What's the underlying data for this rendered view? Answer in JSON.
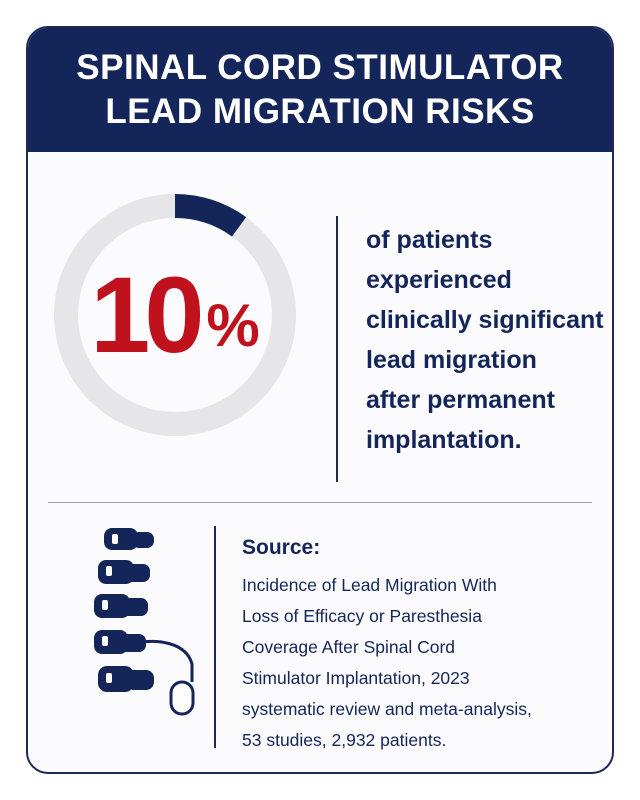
{
  "header": {
    "title_line1": "SPINAL CORD STIMULATOR",
    "title_line2": "LEAD MIGRATION RISKS"
  },
  "stat": {
    "value": "10",
    "unit": "%",
    "fraction": 0.1,
    "description_lines": [
      "of patients",
      "experienced",
      "clinically significant",
      "lead migration",
      "after permanent",
      "implantation."
    ]
  },
  "source": {
    "label": "Source:",
    "lines": [
      "Incidence of Lead Migration With",
      "Loss of Efficacy or Paresthesia",
      "Coverage After Spinal Cord",
      "Stimulator Implantation, 2023",
      "systematic review and meta-analysis,",
      "53 studies, 2,932 patients."
    ]
  },
  "icons": {
    "spine": "spine-with-lead-icon"
  },
  "colors": {
    "navy": "#14255a",
    "red": "#c0121d",
    "ring_track": "#e6e6e9"
  }
}
